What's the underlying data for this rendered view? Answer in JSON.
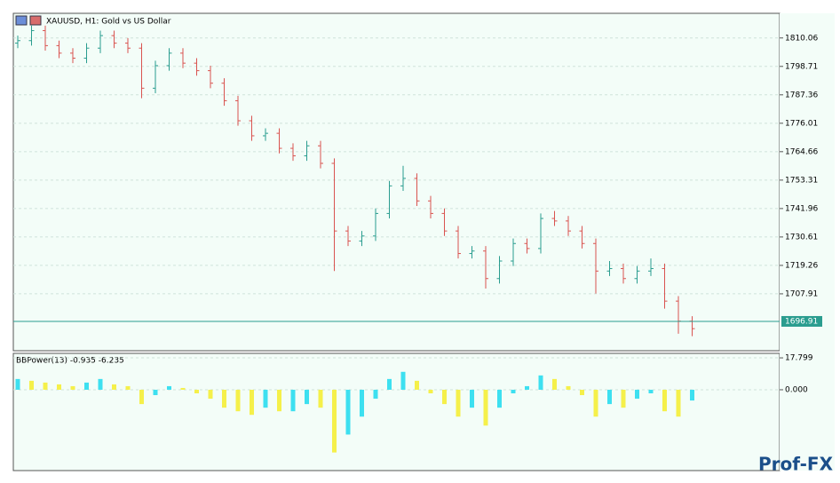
{
  "chart_data": [
    {
      "type": "ohlc",
      "title": "XAUUSD, H1:  Gold vs US Dollar",
      "up_color": "#2a9d8f",
      "down_color": "#d9534f",
      "open": [
        1808,
        1809,
        1813,
        1807,
        1804,
        1802,
        1806,
        1811,
        1808,
        1806,
        1790,
        1799,
        1804,
        1800,
        1797,
        1792,
        1785,
        1777,
        1771,
        1772,
        1766,
        1763,
        1767,
        1760,
        1733,
        1729,
        1731,
        1740,
        1751,
        1754,
        1745,
        1740,
        1733,
        1724,
        1725,
        1714,
        1721,
        1728,
        1726,
        1738,
        1737,
        1733,
        1728,
        1717,
        1718,
        1714,
        1717,
        1718,
        1705,
        1697
      ],
      "high": [
        1811,
        1815,
        1815,
        1809,
        1806,
        1808,
        1813,
        1813,
        1810,
        1808,
        1801,
        1806,
        1806,
        1802,
        1799,
        1794,
        1787,
        1779,
        1774,
        1774,
        1768,
        1769,
        1769,
        1762,
        1735,
        1733,
        1742,
        1753,
        1759,
        1756,
        1747,
        1742,
        1735,
        1727,
        1727,
        1723,
        1730,
        1730,
        1740,
        1741,
        1739,
        1735,
        1730,
        1721,
        1720,
        1719,
        1722,
        1720,
        1707,
        1699
      ],
      "low": [
        1806,
        1807,
        1805,
        1802,
        1800,
        1800,
        1804,
        1806,
        1804,
        1786,
        1788,
        1797,
        1798,
        1795,
        1790,
        1783,
        1775,
        1769,
        1769,
        1764,
        1761,
        1761,
        1758,
        1717,
        1727,
        1727,
        1729,
        1738,
        1749,
        1743,
        1738,
        1731,
        1722,
        1722,
        1710,
        1712,
        1719,
        1724,
        1724,
        1735,
        1731,
        1726,
        1708,
        1715,
        1712,
        1712,
        1715,
        1702,
        1692,
        1691
      ],
      "close": [
        1809,
        1813,
        1807,
        1804,
        1802,
        1806,
        1811,
        1808,
        1806,
        1790,
        1799,
        1804,
        1800,
        1797,
        1792,
        1785,
        1777,
        1771,
        1772,
        1766,
        1763,
        1767,
        1760,
        1733,
        1729,
        1731,
        1740,
        1751,
        1754,
        1745,
        1740,
        1733,
        1724,
        1725,
        1714,
        1721,
        1728,
        1726,
        1738,
        1737,
        1733,
        1728,
        1717,
        1718,
        1714,
        1717,
        1718,
        1705,
        1697,
        1694
      ],
      "ylim": [
        1685.2,
        1819.9
      ],
      "yticks": [
        1810.06,
        1798.71,
        1787.36,
        1776.01,
        1764.66,
        1753.31,
        1741.96,
        1730.61,
        1719.26,
        1707.91
      ],
      "current_price": 1696.91,
      "current_color": "#2a9d8f",
      "grid": true
    },
    {
      "type": "histogram",
      "title": "BBPower(13) -0.935 -6.235",
      "up_color": "#3de0f0",
      "down_color": "#f5f04a",
      "values": [
        6,
        5,
        4,
        3,
        2,
        4,
        6,
        3,
        2,
        -8,
        -3,
        2,
        1,
        -2,
        -5,
        -10,
        -12,
        -14,
        -10,
        -12,
        -12,
        -8,
        -10,
        -35,
        -25,
        -15,
        -5,
        6,
        10,
        5,
        -2,
        -8,
        -15,
        -10,
        -20,
        -10,
        -2,
        2,
        8,
        6,
        2,
        -3,
        -15,
        -8,
        -10,
        -5,
        -2,
        -12,
        -15,
        -6
      ],
      "ylim": [
        -45.1,
        20.3
      ],
      "yticks": [
        17.799,
        {
          "value": 0,
          "label": "0.000"
        }
      ],
      "grid": true
    }
  ],
  "watermark": "Prof-FX"
}
